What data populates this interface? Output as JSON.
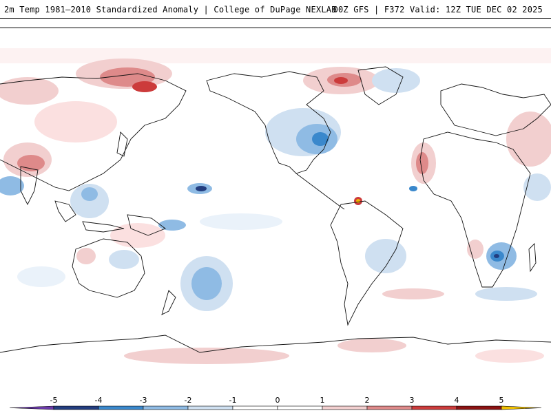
{
  "header": {
    "title_left": "2m Temp 1981–2010 Standardized Anomaly | College of DuPage NEXLAB",
    "title_right": "00Z GFS | F372 Valid: 12Z TUE DEC 02 2025"
  },
  "map": {
    "projection": "equirectangular global",
    "center_longitude": "180"
  },
  "legend": {
    "ticks": [
      "-5",
      "-4",
      "-3",
      "-2",
      "-1",
      "0",
      "1",
      "2",
      "3",
      "4",
      "5"
    ],
    "colors": [
      "#2b1b6e",
      "#223d7f",
      "#3a88cc",
      "#8fbbe4",
      "#cfe0f1",
      "#ffffff",
      "#ffffff",
      "#f2cfcf",
      "#de8a8a",
      "#cc3b3b",
      "#8c1212",
      "#f0b400"
    ],
    "end_low_color": "#6a3aa8",
    "end_high_color": "#f0c000"
  }
}
